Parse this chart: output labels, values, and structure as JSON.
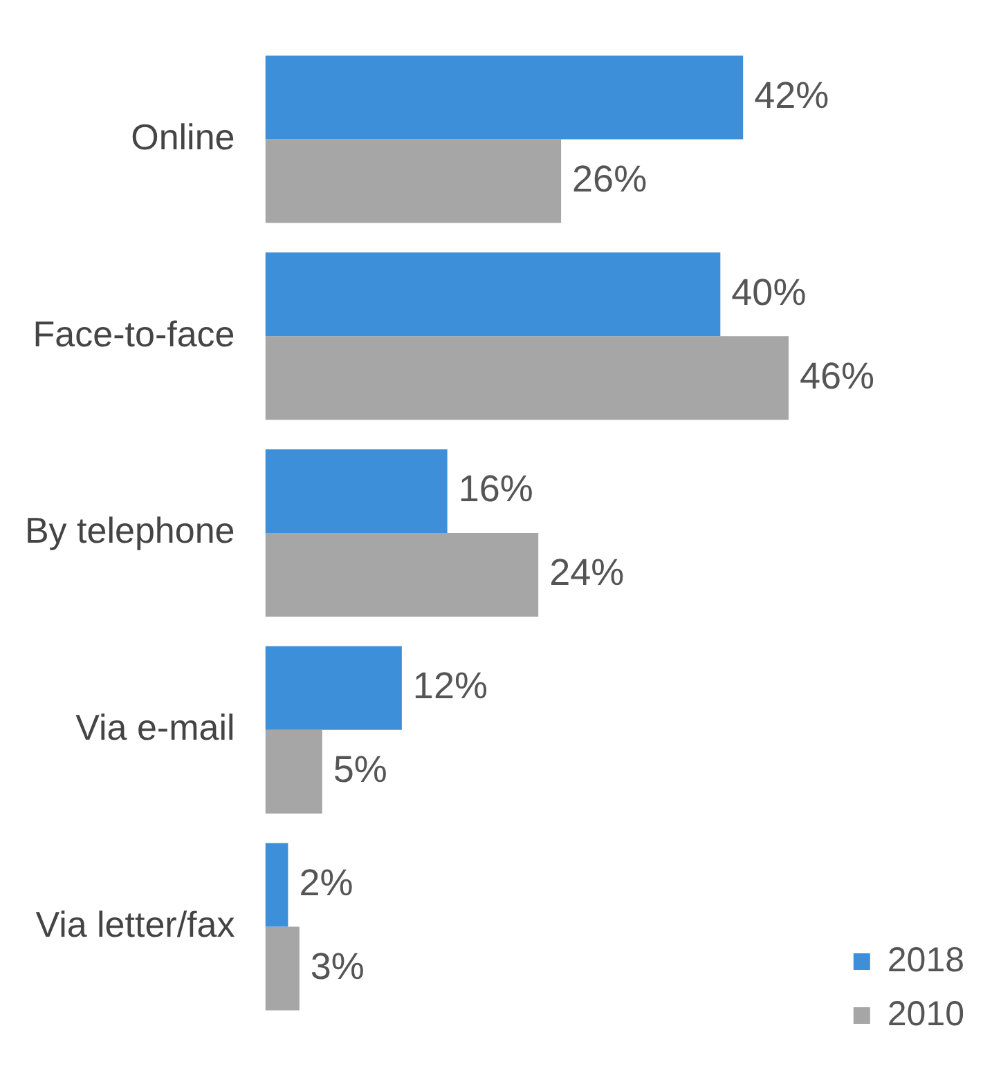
{
  "chart_data": {
    "type": "bar",
    "orientation": "horizontal",
    "categories": [
      "Online",
      "Face-to-face",
      "By telephone",
      "Via e-mail",
      "Via letter/fax"
    ],
    "series": [
      {
        "name": "2018",
        "color": "#3d8fd9",
        "values": [
          42,
          40,
          16,
          12,
          2
        ],
        "value_labels": [
          "42%",
          "40%",
          "16%",
          "12%",
          "2%"
        ]
      },
      {
        "name": "2010",
        "color": "#a6a6a6",
        "values": [
          26,
          46,
          24,
          5,
          3
        ],
        "value_labels": [
          "26%",
          "46%",
          "24%",
          "5%",
          "3%"
        ]
      }
    ],
    "grid": false,
    "legend": "bottom right",
    "tick_labels": "y"
  }
}
